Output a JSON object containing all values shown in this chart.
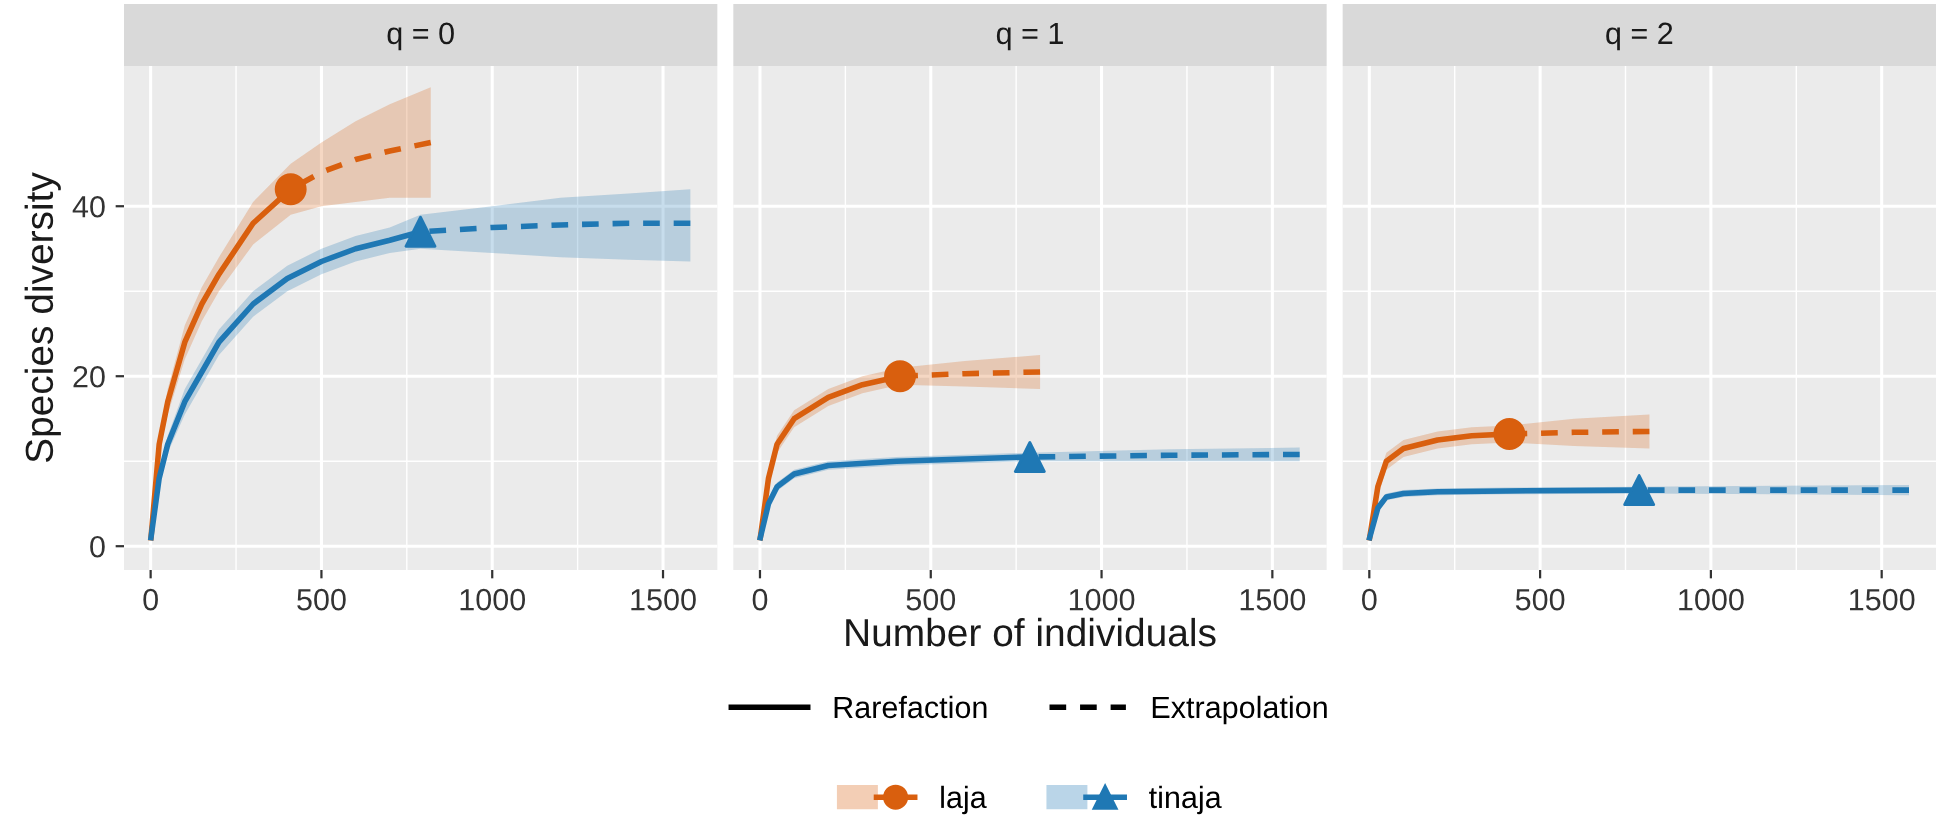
{
  "chart_data": [
    {
      "type": "line",
      "title": "q = 0",
      "ylabel": "Species diversity",
      "xlim": [
        -78,
        1659
      ],
      "xticks": [
        0,
        500,
        1000,
        1500
      ],
      "ylim": [
        -2.8,
        56.5
      ],
      "yticks": [
        0,
        20,
        40
      ],
      "grid": true,
      "legend": "bottom",
      "annotations": [
        "Rarefaction",
        "Extrapolation"
      ],
      "series": [
        {
          "name": "laja",
          "color": "#d95f0e",
          "line_style": "solid",
          "x": [
            1,
            25,
            50,
            100,
            150,
            200,
            300,
            410
          ],
          "values": [
            1,
            12,
            17,
            24,
            28.5,
            32,
            38,
            42
          ],
          "lower": [
            1,
            11,
            15.5,
            22,
            26.5,
            30,
            35.5,
            39
          ],
          "upper": [
            1,
            13,
            18.5,
            26,
            30.5,
            34,
            40.5,
            45
          ]
        },
        {
          "color": "#d95f0e",
          "line_style": "dashed",
          "x": [
            410,
            500,
            600,
            700,
            820
          ],
          "values": [
            42,
            44,
            45.5,
            46.5,
            47.5
          ],
          "lower": [
            39,
            40,
            40.5,
            41,
            41
          ],
          "upper": [
            45,
            47.5,
            50,
            52,
            54
          ]
        },
        {
          "color": "#d95f0e",
          "type": "scatter",
          "marker": "circle",
          "x": [
            410
          ],
          "values": [
            42
          ]
        },
        {
          "name": "tinaja",
          "color": "#1f78b4",
          "line_style": "solid",
          "x": [
            1,
            25,
            50,
            100,
            200,
            300,
            400,
            500,
            600,
            700,
            790
          ],
          "values": [
            1,
            8,
            12,
            17,
            24,
            28.5,
            31.5,
            33.5,
            35,
            36,
            37
          ],
          "lower": [
            1,
            7,
            11,
            15.5,
            22.5,
            27,
            30,
            32,
            33.5,
            34.5,
            35
          ],
          "upper": [
            1,
            9,
            13,
            18.5,
            25.5,
            30,
            33,
            35,
            36.5,
            37.5,
            39
          ]
        },
        {
          "color": "#1f78b4",
          "line_style": "dashed",
          "x": [
            790,
            1000,
            1200,
            1400,
            1580
          ],
          "values": [
            37,
            37.5,
            37.8,
            38,
            38
          ],
          "lower": [
            35,
            34.5,
            34,
            33.7,
            33.5
          ],
          "upper": [
            39,
            40,
            41,
            41.5,
            42
          ]
        },
        {
          "color": "#1f78b4",
          "type": "scatter",
          "marker": "triangle",
          "x": [
            790
          ],
          "values": [
            37
          ]
        }
      ]
    },
    {
      "type": "line",
      "title": "q = 1",
      "xlabel": "Number of individuals",
      "xlim": [
        -78,
        1659
      ],
      "xticks": [
        0,
        500,
        1000,
        1500
      ],
      "ylim": [
        -2.8,
        56.5
      ],
      "yticks": [
        0,
        20,
        40
      ],
      "grid": true,
      "tick_labels": "x",
      "series": [
        {
          "color": "#d95f0e",
          "line_style": "solid",
          "x": [
            1,
            25,
            50,
            100,
            200,
            300,
            410
          ],
          "values": [
            1,
            8,
            12,
            15,
            17.5,
            19,
            20
          ],
          "lower": [
            1,
            7,
            11,
            14,
            16.5,
            18,
            19
          ],
          "upper": [
            1,
            9,
            13,
            16,
            18.5,
            20,
            21
          ]
        },
        {
          "color": "#d95f0e",
          "line_style": "dashed",
          "x": [
            410,
            600,
            820
          ],
          "values": [
            20,
            20.3,
            20.5
          ],
          "lower": [
            19,
            18.8,
            18.5
          ],
          "upper": [
            21,
            21.8,
            22.5
          ]
        },
        {
          "color": "#d95f0e",
          "type": "scatter",
          "marker": "circle",
          "x": [
            410
          ],
          "values": [
            20
          ]
        },
        {
          "color": "#1f78b4",
          "line_style": "solid",
          "x": [
            1,
            25,
            50,
            100,
            200,
            400,
            790
          ],
          "values": [
            1,
            5,
            7,
            8.5,
            9.5,
            10,
            10.5
          ],
          "lower": [
            1,
            4.5,
            6.5,
            8,
            9,
            9.5,
            10
          ],
          "upper": [
            1,
            5.5,
            7.5,
            9,
            10,
            10.5,
            11
          ]
        },
        {
          "color": "#1f78b4",
          "line_style": "dashed",
          "x": [
            790,
            1200,
            1580
          ],
          "values": [
            10.5,
            10.7,
            10.8
          ],
          "lower": [
            10,
            10,
            10
          ],
          "upper": [
            11,
            11.4,
            11.6
          ]
        },
        {
          "color": "#1f78b4",
          "type": "scatter",
          "marker": "triangle",
          "x": [
            790
          ],
          "values": [
            10.5
          ]
        }
      ]
    },
    {
      "type": "line",
      "title": "q = 2",
      "xlim": [
        -78,
        1659
      ],
      "xticks": [
        0,
        500,
        1000,
        1500
      ],
      "ylim": [
        -2.8,
        56.5
      ],
      "yticks": [
        0,
        20,
        40
      ],
      "grid": true,
      "tick_labels": "x",
      "series": [
        {
          "color": "#d95f0e",
          "line_style": "solid",
          "x": [
            1,
            25,
            50,
            100,
            200,
            300,
            410
          ],
          "values": [
            1,
            7,
            10,
            11.5,
            12.5,
            13,
            13.2
          ],
          "lower": [
            1,
            6,
            9,
            10.5,
            11.5,
            12,
            12.2
          ],
          "upper": [
            1,
            8,
            11,
            12.5,
            13.5,
            14,
            14.2
          ]
        },
        {
          "color": "#d95f0e",
          "line_style": "dashed",
          "x": [
            410,
            600,
            820
          ],
          "values": [
            13.2,
            13.4,
            13.5
          ],
          "lower": [
            12.2,
            11.8,
            11.5
          ],
          "upper": [
            14.2,
            15,
            15.5
          ]
        },
        {
          "color": "#d95f0e",
          "type": "scatter",
          "marker": "circle",
          "x": [
            410
          ],
          "values": [
            13.2
          ]
        },
        {
          "color": "#1f78b4",
          "line_style": "solid",
          "x": [
            1,
            25,
            50,
            100,
            200,
            400,
            790
          ],
          "values": [
            1,
            4.5,
            5.8,
            6.2,
            6.4,
            6.5,
            6.6
          ],
          "lower": [
            1,
            4,
            5.4,
            5.8,
            6,
            6.1,
            6.2
          ],
          "upper": [
            1,
            5,
            6.2,
            6.6,
            6.8,
            6.9,
            7
          ]
        },
        {
          "color": "#1f78b4",
          "line_style": "dashed",
          "x": [
            790,
            1200,
            1580
          ],
          "values": [
            6.6,
            6.6,
            6.6
          ],
          "lower": [
            6.2,
            6.1,
            6
          ],
          "upper": [
            7,
            7.1,
            7.2
          ]
        },
        {
          "color": "#1f78b4",
          "type": "scatter",
          "marker": "triangle",
          "x": [
            790
          ],
          "values": [
            6.6
          ]
        }
      ]
    }
  ]
}
